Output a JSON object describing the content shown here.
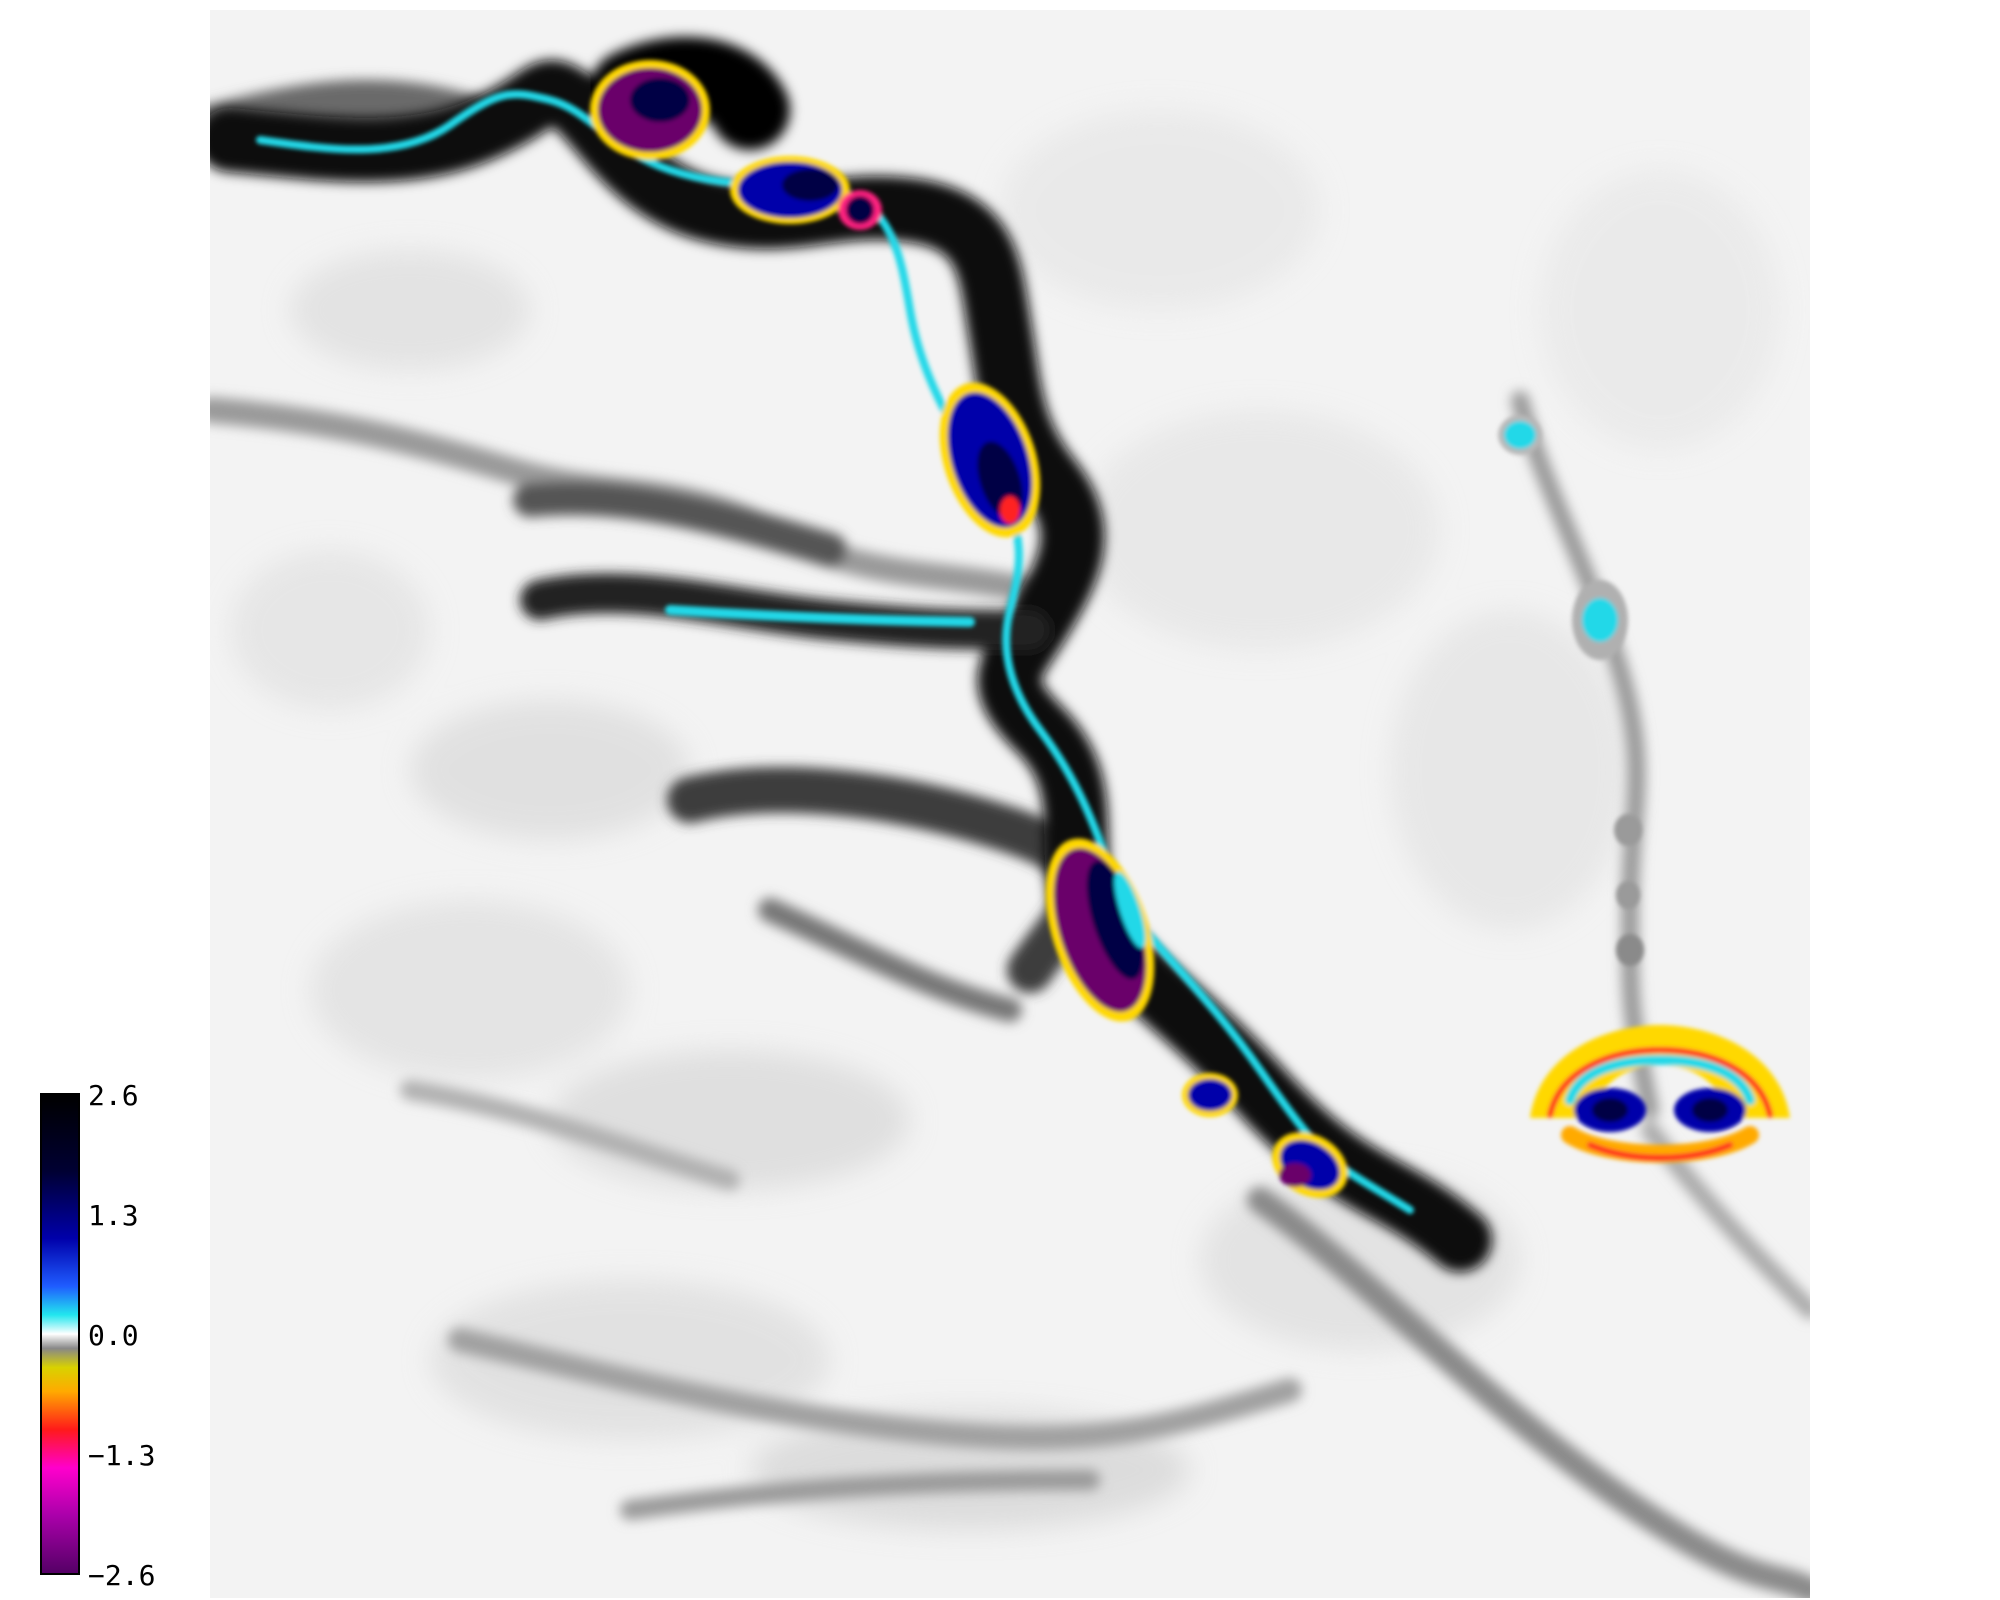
{
  "colorbar": {
    "tick_labels": [
      "2.6",
      "1.3",
      "0.0",
      "−1.3",
      "−2.6"
    ],
    "max": 2.6,
    "min": -2.6,
    "stops": [
      {
        "offset": 0.0,
        "color": "#000000"
      },
      {
        "offset": 0.16,
        "color": "#000033"
      },
      {
        "offset": 0.3,
        "color": "#0000aa"
      },
      {
        "offset": 0.4,
        "color": "#1f5cff"
      },
      {
        "offset": 0.46,
        "color": "#22e6ee"
      },
      {
        "offset": 0.5,
        "color": "#ffffff"
      },
      {
        "offset": 0.53,
        "color": "#888888"
      },
      {
        "offset": 0.57,
        "color": "#d8d200"
      },
      {
        "offset": 0.62,
        "color": "#ffaa00"
      },
      {
        "offset": 0.7,
        "color": "#ff1a1a"
      },
      {
        "offset": 0.78,
        "color": "#ff00cc"
      },
      {
        "offset": 0.88,
        "color": "#aa00aa"
      },
      {
        "offset": 1.0,
        "color": "#550066"
      }
    ]
  },
  "colors": {
    "background": "#f3f3f3",
    "ridge": "#1a1a1a",
    "cyan": "#22d8e8",
    "blue": "#0000aa",
    "navy": "#000044",
    "purple": "#6a006a",
    "yellow": "#ffd800",
    "red": "#ff2020",
    "white": "#ffffff"
  }
}
